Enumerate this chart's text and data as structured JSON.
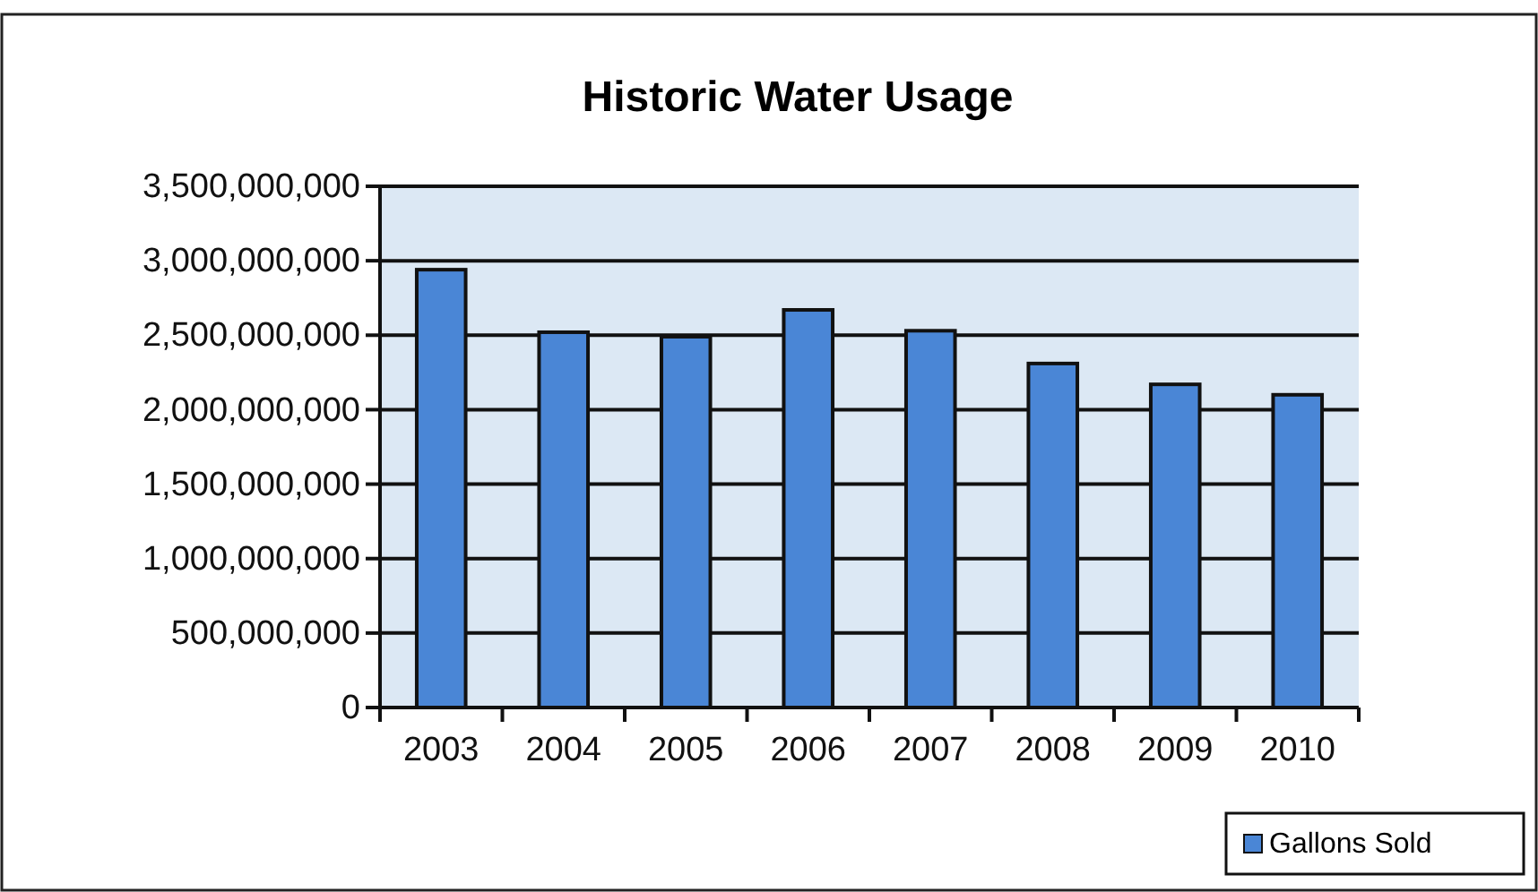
{
  "chart_data": {
    "type": "bar",
    "title": "Historic Water Usage",
    "categories": [
      "2003",
      "2004",
      "2005",
      "2006",
      "2007",
      "2008",
      "2009",
      "2010"
    ],
    "series": [
      {
        "name": "Gallons Sold",
        "color": "#4a86d6",
        "values": [
          2940000000,
          2520000000,
          2490000000,
          2670000000,
          2530000000,
          2310000000,
          2170000000,
          2100000000
        ]
      }
    ],
    "ylim": [
      0,
      3500000000
    ],
    "yticks": [
      {
        "value": 0,
        "label": "0"
      },
      {
        "value": 500000000,
        "label": "500,000,000"
      },
      {
        "value": 1000000000,
        "label": "1,000,000,000"
      },
      {
        "value": 1500000000,
        "label": "1,500,000,000"
      },
      {
        "value": 2000000000,
        "label": "2,000,000,000"
      },
      {
        "value": 2500000000,
        "label": "2,500,000,000"
      },
      {
        "value": 3000000000,
        "label": "3,000,000,000"
      },
      {
        "value": 3500000000,
        "label": "3,500,000,000"
      }
    ],
    "grid": "y",
    "legend": "bottom right"
  }
}
